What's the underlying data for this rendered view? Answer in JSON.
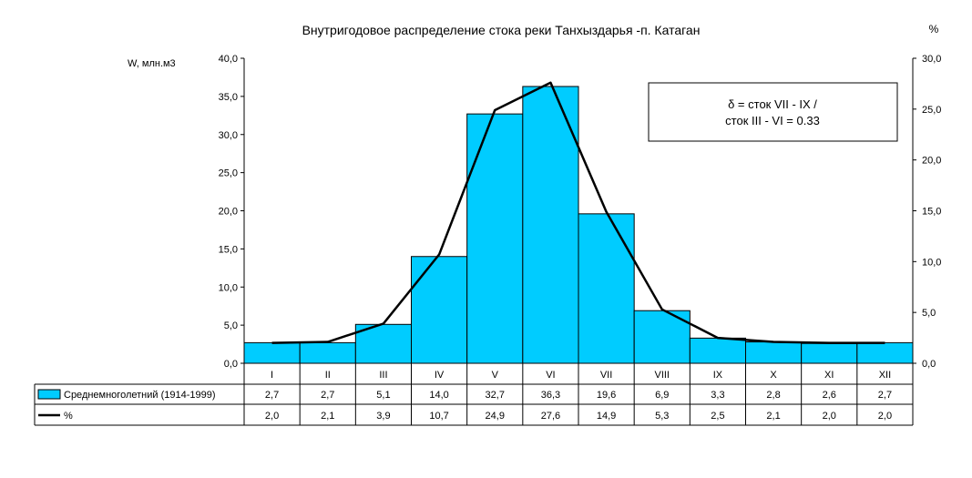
{
  "chart_data": {
    "type": "bar",
    "title": "Внутригодовое распределение стока реки Танхыздарья -п. Катаган",
    "ylabel_left": "W, млн.м3",
    "ylabel_right": "%",
    "ylim_left": [
      0,
      40
    ],
    "ylim_right": [
      0,
      30
    ],
    "yticks_left": [
      "0,0",
      "5,0",
      "10,0",
      "15,0",
      "20,0",
      "25,0",
      "30,0",
      "35,0",
      "40,0"
    ],
    "yticks_right": [
      "0,0",
      "5,0",
      "10,0",
      "15,0",
      "20,0",
      "25,0",
      "30,0"
    ],
    "categories": [
      "I",
      "II",
      "III",
      "IV",
      "V",
      "VI",
      "VII",
      "VIII",
      "IX",
      "X",
      "XI",
      "XII"
    ],
    "series": [
      {
        "name": "Среднемноголетний (1914-1999)",
        "type": "bar",
        "axis": "left",
        "color": "#00CCFF",
        "values": [
          2.7,
          2.7,
          5.1,
          14.0,
          32.7,
          36.3,
          19.6,
          6.9,
          3.3,
          2.8,
          2.6,
          2.7
        ],
        "labels": [
          "2,7",
          "2,7",
          "5,1",
          "14,0",
          "32,7",
          "36,3",
          "19,6",
          "6,9",
          "3,3",
          "2,8",
          "2,6",
          "2,7"
        ]
      },
      {
        "name": "%",
        "type": "line",
        "axis": "right",
        "color": "#000000",
        "values": [
          2.0,
          2.1,
          3.9,
          10.7,
          24.9,
          27.6,
          14.9,
          5.3,
          2.5,
          2.1,
          2.0,
          2.0
        ],
        "labels": [
          "2,0",
          "2,1",
          "3,9",
          "10,7",
          "24,9",
          "27,6",
          "14,9",
          "5,3",
          "2,5",
          "2,1",
          "2,0",
          "2,0"
        ]
      }
    ],
    "annotation_lines": [
      "δ = сток VII - IX /",
      "сток III - VI = 0.33"
    ],
    "grid": false,
    "legend": "data-table"
  }
}
